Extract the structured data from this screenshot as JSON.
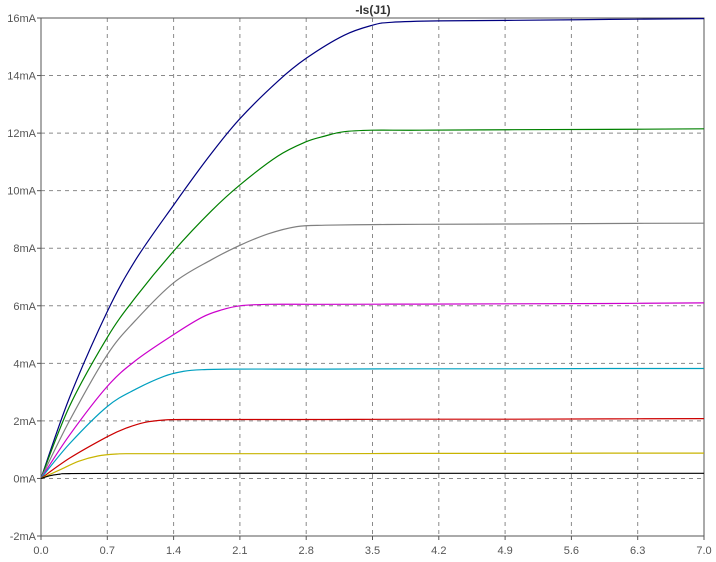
{
  "chart_data": {
    "type": "line",
    "title": "-Is(J1)",
    "xlabel": "",
    "ylabel": "",
    "xlim": [
      0,
      7
    ],
    "ylim": [
      -2,
      16
    ],
    "x_ticks": [
      0.0,
      0.7,
      1.4,
      2.1,
      2.8,
      3.5,
      4.2,
      4.9,
      5.6,
      6.3,
      7.0
    ],
    "x_tick_labels": [
      "0.0",
      "0.7",
      "1.4",
      "2.1",
      "2.8",
      "3.5",
      "4.2",
      "4.9",
      "5.6",
      "6.3",
      "7.0"
    ],
    "y_ticks": [
      -2,
      0,
      2,
      4,
      6,
      8,
      10,
      12,
      14,
      16
    ],
    "y_tick_labels": [
      "-2mA",
      "0mA",
      "2mA",
      "4mA",
      "6mA",
      "8mA",
      "10mA",
      "12mA",
      "14mA",
      "16mA"
    ],
    "grid": true,
    "legend": "none",
    "series": [
      {
        "color": "#000080",
        "x": [
          0,
          0.3,
          0.7,
          1.0,
          1.4,
          1.8,
          2.1,
          2.5,
          2.8,
          3.2,
          3.5,
          3.7,
          4.2,
          5.0,
          6.0,
          7.0
        ],
        "values": [
          0,
          2.8,
          5.8,
          7.6,
          9.5,
          11.3,
          12.5,
          13.8,
          14.6,
          15.4,
          15.75,
          15.85,
          15.9,
          15.92,
          15.95,
          15.98
        ]
      },
      {
        "color": "#008000",
        "x": [
          0,
          0.3,
          0.7,
          1.0,
          1.4,
          1.8,
          2.1,
          2.5,
          2.8,
          3.0,
          3.2,
          3.5,
          4.0,
          5.0,
          6.0,
          7.0
        ],
        "values": [
          0,
          2.5,
          4.9,
          6.3,
          7.9,
          9.3,
          10.2,
          11.2,
          11.7,
          11.9,
          12.05,
          12.1,
          12.1,
          12.12,
          12.13,
          12.15
        ]
      },
      {
        "color": "#808080",
        "x": [
          0,
          0.3,
          0.7,
          1.0,
          1.4,
          1.8,
          2.1,
          2.4,
          2.7,
          3.0,
          3.5,
          4.0,
          5.0,
          6.0,
          7.0
        ],
        "values": [
          0,
          2.0,
          4.3,
          5.5,
          6.8,
          7.6,
          8.1,
          8.5,
          8.75,
          8.8,
          8.82,
          8.83,
          8.84,
          8.86,
          8.87
        ]
      },
      {
        "color": "#cc00cc",
        "x": [
          0,
          0.3,
          0.7,
          1.0,
          1.4,
          1.7,
          1.9,
          2.1,
          2.4,
          3.0,
          4.0,
          5.0,
          6.0,
          7.0
        ],
        "values": [
          0,
          1.5,
          3.2,
          4.1,
          5.0,
          5.6,
          5.85,
          6.0,
          6.05,
          6.05,
          6.06,
          6.07,
          6.08,
          6.1
        ]
      },
      {
        "color": "#00a0c0",
        "x": [
          0,
          0.3,
          0.7,
          1.0,
          1.3,
          1.5,
          1.7,
          2.0,
          2.5,
          3.0,
          4.0,
          5.0,
          6.0,
          7.0
        ],
        "values": [
          0,
          1.2,
          2.5,
          3.1,
          3.55,
          3.72,
          3.78,
          3.8,
          3.8,
          3.8,
          3.81,
          3.81,
          3.82,
          3.82
        ]
      },
      {
        "color": "#cc0000",
        "x": [
          0,
          0.3,
          0.7,
          0.9,
          1.1,
          1.3,
          1.5,
          2.0,
          3.0,
          4.0,
          5.0,
          6.0,
          7.0
        ],
        "values": [
          0,
          0.7,
          1.45,
          1.75,
          1.95,
          2.03,
          2.05,
          2.05,
          2.05,
          2.06,
          2.06,
          2.07,
          2.08
        ]
      },
      {
        "color": "#c8b400",
        "x": [
          0,
          0.2,
          0.4,
          0.6,
          0.8,
          1.0,
          2.0,
          3.0,
          4.0,
          5.0,
          6.0,
          7.0
        ],
        "values": [
          0,
          0.3,
          0.6,
          0.78,
          0.85,
          0.86,
          0.86,
          0.86,
          0.87,
          0.87,
          0.88,
          0.88
        ]
      },
      {
        "color": "#000000",
        "x": [
          0,
          0.1,
          0.2,
          0.3,
          1.0,
          3.0,
          5.0,
          7.0
        ],
        "values": [
          0,
          0.1,
          0.15,
          0.17,
          0.18,
          0.18,
          0.18,
          0.18
        ]
      }
    ]
  }
}
